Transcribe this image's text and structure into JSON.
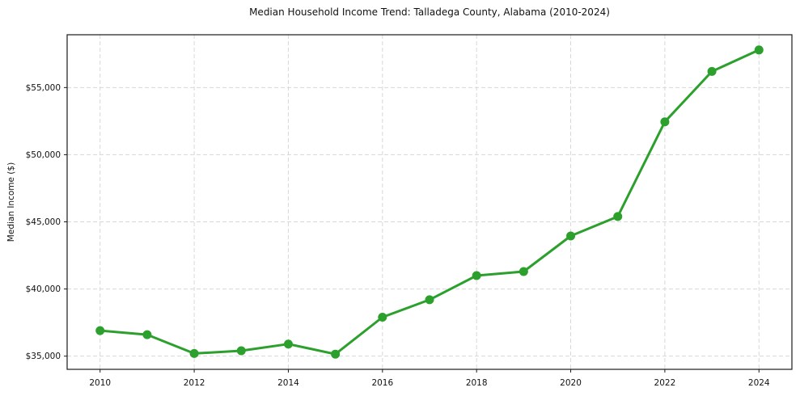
{
  "chart_data": {
    "type": "line",
    "title": "Median Household Income Trend: Talladega County, Alabama (2010-2024)",
    "xlabel": "",
    "ylabel": "Median Income ($)",
    "x": [
      2010,
      2011,
      2012,
      2013,
      2014,
      2015,
      2016,
      2017,
      2018,
      2019,
      2020,
      2021,
      2022,
      2023,
      2024
    ],
    "series": [
      {
        "name": "Median Household Income",
        "values": [
          36900,
          36600,
          35200,
          35400,
          35900,
          35150,
          37900,
          39200,
          41000,
          41300,
          43950,
          45400,
          52450,
          56200,
          57800
        ]
      }
    ],
    "xticks": {
      "values": [
        2010,
        2012,
        2014,
        2016,
        2018,
        2020,
        2022,
        2024
      ],
      "labels": [
        "2010",
        "2012",
        "2014",
        "2016",
        "2018",
        "2020",
        "2022",
        "2024"
      ]
    },
    "yticks": {
      "values": [
        35000,
        40000,
        45000,
        50000,
        55000
      ],
      "labels": [
        "$35,000",
        "$40,000",
        "$45,000",
        "$50,000",
        "$55,000"
      ]
    },
    "xlim": [
      2009.3,
      2024.7
    ],
    "ylim": [
      34018,
      58932
    ],
    "grid": true,
    "grid_style": "dashed",
    "legend": "none",
    "colors": {
      "line": "#2ca02c",
      "marker": "#2ca02c",
      "grid": "#d8d8d8",
      "spine": "#1a1a1a",
      "text": "#111111",
      "background": "#ffffff"
    }
  }
}
